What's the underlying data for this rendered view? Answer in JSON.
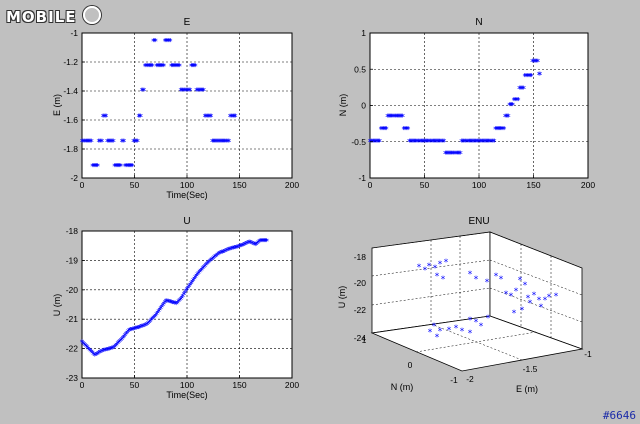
{
  "logo_text": "MOBILE",
  "watermark": "#6646",
  "marker_color": "#0000ff",
  "chart_data": [
    {
      "type": "scatter",
      "title": "E",
      "xlabel": "Time(Sec)",
      "ylabel": "E (m)",
      "xlim": [
        0,
        200
      ],
      "ylim": [
        -2,
        -1
      ],
      "xticks": [
        "0",
        "50",
        "100",
        "150",
        "200"
      ],
      "yticks": [
        "-2",
        "-1.8",
        "-1.6",
        "-1.4",
        "-1.2",
        "-1"
      ],
      "grid": true,
      "segments": [
        {
          "x0": 0,
          "x1": 9,
          "y": -1.75
        },
        {
          "x0": 10,
          "x1": 15,
          "y": -1.92
        },
        {
          "x0": 16,
          "x1": 19,
          "y": -1.75
        },
        {
          "x0": 20,
          "x1": 23,
          "y": -1.58
        },
        {
          "x0": 24,
          "x1": 30,
          "y": -1.75
        },
        {
          "x0": 31,
          "x1": 37,
          "y": -1.92
        },
        {
          "x0": 38,
          "x1": 40,
          "y": -1.75
        },
        {
          "x0": 41,
          "x1": 48,
          "y": -1.92
        },
        {
          "x0": 49,
          "x1": 53,
          "y": -1.75
        },
        {
          "x0": 54,
          "x1": 56,
          "y": -1.58
        },
        {
          "x0": 57,
          "x1": 59,
          "y": -1.4
        },
        {
          "x0": 60,
          "x1": 67,
          "y": -1.23
        },
        {
          "x0": 68,
          "x1": 70,
          "y": -1.06
        },
        {
          "x0": 71,
          "x1": 78,
          "y": -1.23
        },
        {
          "x0": 79,
          "x1": 84,
          "y": -1.06
        },
        {
          "x0": 85,
          "x1": 93,
          "y": -1.23
        },
        {
          "x0": 94,
          "x1": 103,
          "y": -1.4
        },
        {
          "x0": 104,
          "x1": 108,
          "y": -1.23
        },
        {
          "x0": 109,
          "x1": 116,
          "y": -1.4
        },
        {
          "x0": 117,
          "x1": 123,
          "y": -1.58
        },
        {
          "x0": 124,
          "x1": 140,
          "y": -1.75
        },
        {
          "x0": 141,
          "x1": 146,
          "y": -1.58
        }
      ]
    },
    {
      "type": "scatter",
      "title": "N",
      "xlabel": "",
      "ylabel": "N (m)",
      "xlim": [
        0,
        200
      ],
      "ylim": [
        -1,
        1
      ],
      "xticks": [
        "0",
        "50",
        "100",
        "150",
        "200"
      ],
      "yticks": [
        "-1",
        "-0.5",
        "0",
        "0.5",
        "1"
      ],
      "grid": true,
      "segments": [
        {
          "x0": 0,
          "x1": 9,
          "y": -0.5
        },
        {
          "x0": 10,
          "x1": 15,
          "y": -0.33
        },
        {
          "x0": 16,
          "x1": 30,
          "y": -0.16
        },
        {
          "x0": 31,
          "x1": 35,
          "y": -0.33
        },
        {
          "x0": 36,
          "x1": 68,
          "y": -0.5
        },
        {
          "x0": 69,
          "x1": 83,
          "y": -0.67
        },
        {
          "x0": 84,
          "x1": 114,
          "y": -0.5
        },
        {
          "x0": 115,
          "x1": 123,
          "y": -0.33
        },
        {
          "x0": 124,
          "x1": 127,
          "y": -0.16
        },
        {
          "x0": 128,
          "x1": 131,
          "y": 0.0
        },
        {
          "x0": 132,
          "x1": 136,
          "y": 0.07
        },
        {
          "x0": 137,
          "x1": 141,
          "y": 0.23
        },
        {
          "x0": 142,
          "x1": 148,
          "y": 0.4
        },
        {
          "x0": 149,
          "x1": 154,
          "y": 0.6
        },
        {
          "x0": 155,
          "x1": 156,
          "y": 0.42
        }
      ]
    },
    {
      "type": "scatter",
      "title": "U",
      "xlabel": "Time(Sec)",
      "ylabel": "U (m)",
      "xlim": [
        0,
        200
      ],
      "ylim": [
        -23,
        -18
      ],
      "xticks": [
        "0",
        "50",
        "100",
        "150",
        "200"
      ],
      "yticks": [
        "-23",
        "-22",
        "-21",
        "-20",
        "-19",
        "-18"
      ],
      "grid": true,
      "trend": [
        [
          0,
          -21.8
        ],
        [
          8,
          -22.1
        ],
        [
          12,
          -22.25
        ],
        [
          20,
          -22.1
        ],
        [
          30,
          -22.0
        ],
        [
          38,
          -21.7
        ],
        [
          45,
          -21.4
        ],
        [
          55,
          -21.3
        ],
        [
          62,
          -21.2
        ],
        [
          70,
          -20.9
        ],
        [
          80,
          -20.4
        ],
        [
          90,
          -20.5
        ],
        [
          95,
          -20.3
        ],
        [
          100,
          -20.0
        ],
        [
          110,
          -19.5
        ],
        [
          120,
          -19.1
        ],
        [
          130,
          -18.8
        ],
        [
          140,
          -18.65
        ],
        [
          150,
          -18.55
        ],
        [
          160,
          -18.4
        ],
        [
          165,
          -18.5
        ],
        [
          170,
          -18.35
        ],
        [
          176,
          -18.35
        ]
      ]
    },
    {
      "type": "scatter",
      "title": "ENU",
      "xlabel": "E (m)",
      "ylabel": "N (m)",
      "zlabel": "U (m)",
      "xticks": [
        "-2",
        "-1.5",
        "-1"
      ],
      "yticks": [
        "-1",
        "0",
        "1"
      ],
      "zticks": [
        "-24",
        "-22",
        "-20",
        "-18"
      ],
      "grid": true
    }
  ]
}
